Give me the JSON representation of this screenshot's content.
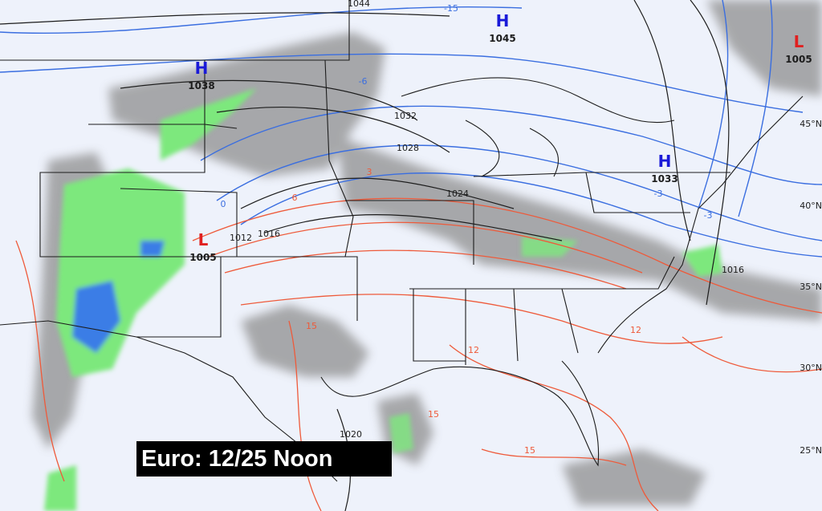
{
  "caption": "Euro: 12/25 Noon",
  "colors": {
    "background": "#eef2fb",
    "high_pressure": "#1a1ad8",
    "low_pressure": "#e02020",
    "cold_isotherm": "#3a6ee0",
    "warm_isotherm": "#ee5a3a",
    "boundaries_isobars": "#1c1c1c",
    "snow_shading": "#8f8f8f",
    "rain_light": "#7de87d",
    "rain_heavy": "#3b7de6"
  },
  "pressure_centers": [
    {
      "type": "H",
      "value": "1038"
    },
    {
      "type": "H",
      "value": "1045"
    },
    {
      "type": "H",
      "value": "1033"
    },
    {
      "type": "L",
      "value": "1005"
    },
    {
      "type": "L",
      "value": "1005"
    }
  ],
  "isobar_labels": [
    "1044",
    "1032",
    "1028",
    "1024",
    "1016",
    "1012",
    "1016",
    "1020"
  ],
  "temperature_labels": [
    "-15",
    "-6",
    "-3",
    "-3",
    "0",
    "3",
    "6",
    "12",
    "12",
    "15",
    "15",
    "15"
  ],
  "latitude_labels": [
    "45°N",
    "40°N",
    "35°N",
    "30°N",
    "25°N"
  ]
}
